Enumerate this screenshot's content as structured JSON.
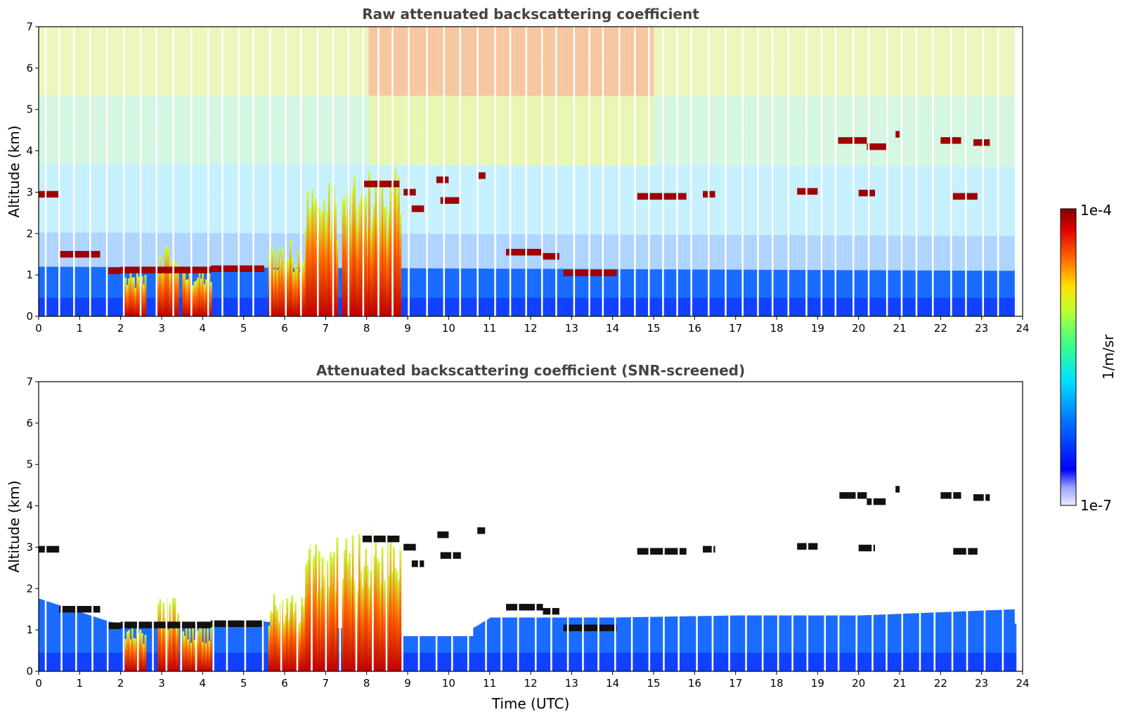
{
  "chart_data": [
    {
      "type": "heatmap",
      "title": "Raw attenuated backscattering coefficient",
      "xlabel": "",
      "ylabel": "Altitude (km)",
      "xlim": [
        0,
        24
      ],
      "ylim": [
        0,
        7
      ],
      "xticks": [
        "0",
        "1",
        "2",
        "3",
        "4",
        "5",
        "6",
        "7",
        "8",
        "9",
        "10",
        "11",
        "12",
        "13",
        "14",
        "15",
        "16",
        "17",
        "18",
        "19",
        "20",
        "21",
        "22",
        "23",
        "24"
      ],
      "yticks": [
        "0",
        "1",
        "2",
        "3",
        "4",
        "5",
        "6",
        "7"
      ],
      "color_scale": {
        "min": "1e-7",
        "max": "1e-4",
        "label": "1/m/sr"
      }
    },
    {
      "type": "heatmap",
      "title": "Attenuated backscattering coefficient (SNR-screened)",
      "xlabel": "Time (UTC)",
      "ylabel": "Altitude (km)",
      "xlim": [
        0,
        24
      ],
      "ylim": [
        0,
        7
      ],
      "xticks": [
        "0",
        "1",
        "2",
        "3",
        "4",
        "5",
        "6",
        "7",
        "8",
        "9",
        "10",
        "11",
        "12",
        "13",
        "14",
        "15",
        "16",
        "17",
        "18",
        "19",
        "20",
        "21",
        "22",
        "23",
        "24"
      ],
      "yticks": [
        "0",
        "1",
        "2",
        "3",
        "4",
        "5",
        "6",
        "7"
      ],
      "color_scale": {
        "min": "1e-7",
        "max": "1e-4",
        "label": "1/m/sr"
      }
    }
  ],
  "colorbar": {
    "max_label": "1e-4",
    "min_label": "1e-7",
    "unit_label": "1/m/sr"
  }
}
